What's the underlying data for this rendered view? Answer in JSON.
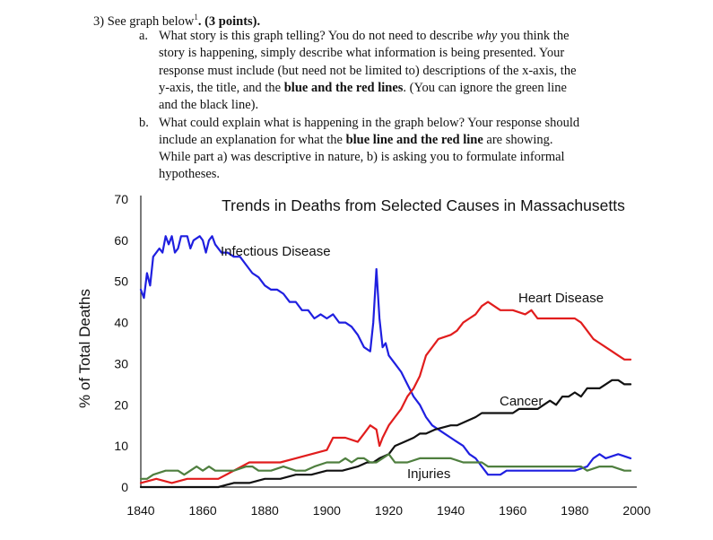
{
  "question": {
    "heading": "3)  See graph below",
    "sup": "1",
    "points": ". (3 points).",
    "a_marker": "a.",
    "a_lines": [
      [
        "What story is this graph telling? You do not need to describe ",
        "why",
        " you think the"
      ],
      [
        "story is happening, simply describe what information is being presented. Your"
      ],
      [
        "response must include (but need not be limited to) descriptions of the x-axis, the"
      ],
      [
        "y-axis, the title, and the ",
        "blue and the red lines",
        ". (You can ignore the green line"
      ],
      [
        "and the black line)."
      ]
    ],
    "a_l1_pre": "What story is this graph telling? You do not need to describe ",
    "a_l1_em": "why",
    "a_l1_post": " you think the",
    "a_l2": "story is happening, simply describe what information is being presented. Your",
    "a_l3": "response must include (but need not be limited to) descriptions of the x-axis, the",
    "a_l4_pre": "y-axis, the title, and the ",
    "a_l4_bold": "blue and the red lines",
    "a_l4_post": ". (You can ignore the green line",
    "a_l5": "and the black line).",
    "b_marker": "b.",
    "b_l1": "What could explain what is happening in the graph below? Your response should",
    "b_l2_pre": "include an explanation for what the ",
    "b_l2_bold": "blue line and the red line",
    "b_l2_post": " are showing.",
    "b_l3": "While part a) was descriptive in nature, b) is asking you to formulate informal",
    "b_l4": "hypotheses."
  },
  "chart_data": {
    "type": "line",
    "title": "Trends in Deaths from Selected Causes in Massachusetts",
    "ylabel": "% of Total Deaths",
    "xlabel": "",
    "xlim": [
      1840,
      2000
    ],
    "ylim": [
      0,
      70
    ],
    "x_ticks": [
      "1840",
      "1860",
      "1880",
      "1900",
      "1920",
      "1940",
      "1960",
      "1980",
      "2000"
    ],
    "y_ticks": [
      "0",
      "10",
      "20",
      "30",
      "40",
      "50",
      "60",
      "70"
    ],
    "grid": false,
    "series": [
      {
        "name": "Infectious Disease",
        "color": "#1f1fe0",
        "points": [
          [
            1840,
            48
          ],
          [
            1841,
            46
          ],
          [
            1842,
            52
          ],
          [
            1843,
            49
          ],
          [
            1844,
            56
          ],
          [
            1846,
            58
          ],
          [
            1847,
            57
          ],
          [
            1848,
            61
          ],
          [
            1849,
            59
          ],
          [
            1850,
            61
          ],
          [
            1851,
            57
          ],
          [
            1852,
            58
          ],
          [
            1853,
            61
          ],
          [
            1855,
            61
          ],
          [
            1856,
            58
          ],
          [
            1857,
            60
          ],
          [
            1859,
            61
          ],
          [
            1860,
            60
          ],
          [
            1861,
            57
          ],
          [
            1862,
            60
          ],
          [
            1863,
            61
          ],
          [
            1864,
            59
          ],
          [
            1866,
            57
          ],
          [
            1868,
            57
          ],
          [
            1870,
            56
          ],
          [
            1872,
            56
          ],
          [
            1874,
            54
          ],
          [
            1876,
            52
          ],
          [
            1878,
            51
          ],
          [
            1880,
            49
          ],
          [
            1882,
            48
          ],
          [
            1884,
            48
          ],
          [
            1886,
            47
          ],
          [
            1888,
            45
          ],
          [
            1890,
            45
          ],
          [
            1892,
            43
          ],
          [
            1894,
            43
          ],
          [
            1896,
            41
          ],
          [
            1898,
            42
          ],
          [
            1900,
            41
          ],
          [
            1902,
            42
          ],
          [
            1904,
            40
          ],
          [
            1906,
            40
          ],
          [
            1908,
            39
          ],
          [
            1910,
            37
          ],
          [
            1912,
            34
          ],
          [
            1914,
            33
          ],
          [
            1915,
            40
          ],
          [
            1916,
            53
          ],
          [
            1917,
            41
          ],
          [
            1918,
            34
          ],
          [
            1919,
            35
          ],
          [
            1920,
            32
          ],
          [
            1922,
            30
          ],
          [
            1924,
            28
          ],
          [
            1926,
            25
          ],
          [
            1928,
            22
          ],
          [
            1930,
            20
          ],
          [
            1932,
            17
          ],
          [
            1934,
            15
          ],
          [
            1936,
            14
          ],
          [
            1938,
            13
          ],
          [
            1940,
            12
          ],
          [
            1942,
            11
          ],
          [
            1944,
            10
          ],
          [
            1946,
            8
          ],
          [
            1948,
            7
          ],
          [
            1950,
            5
          ],
          [
            1952,
            3
          ],
          [
            1954,
            3
          ],
          [
            1956,
            3
          ],
          [
            1958,
            4
          ],
          [
            1960,
            4
          ],
          [
            1964,
            4
          ],
          [
            1968,
            4
          ],
          [
            1972,
            4
          ],
          [
            1976,
            4
          ],
          [
            1980,
            4
          ],
          [
            1984,
            5
          ],
          [
            1986,
            7
          ],
          [
            1988,
            8
          ],
          [
            1990,
            7
          ],
          [
            1994,
            8
          ],
          [
            1998,
            7
          ]
        ]
      },
      {
        "name": "Heart Disease",
        "color": "#e11d1d",
        "points": [
          [
            1840,
            1
          ],
          [
            1845,
            2
          ],
          [
            1850,
            1
          ],
          [
            1855,
            2
          ],
          [
            1860,
            2
          ],
          [
            1865,
            2
          ],
          [
            1870,
            4
          ],
          [
            1875,
            6
          ],
          [
            1880,
            6
          ],
          [
            1885,
            6
          ],
          [
            1890,
            7
          ],
          [
            1895,
            8
          ],
          [
            1900,
            9
          ],
          [
            1902,
            12
          ],
          [
            1906,
            12
          ],
          [
            1910,
            11
          ],
          [
            1912,
            13
          ],
          [
            1914,
            15
          ],
          [
            1916,
            14
          ],
          [
            1917,
            10
          ],
          [
            1918,
            12
          ],
          [
            1920,
            15
          ],
          [
            1922,
            17
          ],
          [
            1924,
            19
          ],
          [
            1926,
            22
          ],
          [
            1928,
            24
          ],
          [
            1930,
            27
          ],
          [
            1932,
            32
          ],
          [
            1934,
            34
          ],
          [
            1936,
            36
          ],
          [
            1940,
            37
          ],
          [
            1942,
            38
          ],
          [
            1944,
            40
          ],
          [
            1946,
            41
          ],
          [
            1948,
            42
          ],
          [
            1950,
            44
          ],
          [
            1952,
            45
          ],
          [
            1954,
            44
          ],
          [
            1956,
            43
          ],
          [
            1960,
            43
          ],
          [
            1964,
            42
          ],
          [
            1966,
            43
          ],
          [
            1968,
            41
          ],
          [
            1972,
            41
          ],
          [
            1976,
            41
          ],
          [
            1980,
            41
          ],
          [
            1982,
            40
          ],
          [
            1984,
            38
          ],
          [
            1986,
            36
          ],
          [
            1988,
            35
          ],
          [
            1990,
            34
          ],
          [
            1992,
            33
          ],
          [
            1994,
            32
          ],
          [
            1996,
            31
          ],
          [
            1998,
            31
          ]
        ]
      },
      {
        "name": "Cancer",
        "color": "#111111",
        "points": [
          [
            1840,
            0
          ],
          [
            1845,
            0
          ],
          [
            1850,
            0
          ],
          [
            1855,
            0
          ],
          [
            1860,
            0
          ],
          [
            1865,
            0
          ],
          [
            1870,
            1
          ],
          [
            1875,
            1
          ],
          [
            1880,
            2
          ],
          [
            1885,
            2
          ],
          [
            1890,
            3
          ],
          [
            1895,
            3
          ],
          [
            1900,
            4
          ],
          [
            1905,
            4
          ],
          [
            1910,
            5
          ],
          [
            1913,
            6
          ],
          [
            1915,
            6
          ],
          [
            1917,
            7
          ],
          [
            1920,
            8
          ],
          [
            1922,
            10
          ],
          [
            1925,
            11
          ],
          [
            1928,
            12
          ],
          [
            1930,
            13
          ],
          [
            1932,
            13
          ],
          [
            1935,
            14
          ],
          [
            1940,
            15
          ],
          [
            1942,
            15
          ],
          [
            1945,
            16
          ],
          [
            1948,
            17
          ],
          [
            1950,
            18
          ],
          [
            1955,
            18
          ],
          [
            1958,
            18
          ],
          [
            1960,
            18
          ],
          [
            1962,
            19
          ],
          [
            1965,
            19
          ],
          [
            1968,
            19
          ],
          [
            1970,
            20
          ],
          [
            1972,
            21
          ],
          [
            1974,
            20
          ],
          [
            1976,
            22
          ],
          [
            1978,
            22
          ],
          [
            1980,
            23
          ],
          [
            1982,
            22
          ],
          [
            1984,
            24
          ],
          [
            1986,
            24
          ],
          [
            1988,
            24
          ],
          [
            1990,
            25
          ],
          [
            1992,
            26
          ],
          [
            1994,
            26
          ],
          [
            1996,
            25
          ],
          [
            1998,
            25
          ]
        ]
      },
      {
        "name": "Injuries",
        "color": "#4f7f3f",
        "points": [
          [
            1840,
            2
          ],
          [
            1842,
            2
          ],
          [
            1844,
            3
          ],
          [
            1848,
            4
          ],
          [
            1852,
            4
          ],
          [
            1854,
            3
          ],
          [
            1858,
            5
          ],
          [
            1860,
            4
          ],
          [
            1862,
            5
          ],
          [
            1864,
            4
          ],
          [
            1868,
            4
          ],
          [
            1870,
            4
          ],
          [
            1874,
            5
          ],
          [
            1876,
            5
          ],
          [
            1878,
            4
          ],
          [
            1882,
            4
          ],
          [
            1886,
            5
          ],
          [
            1890,
            4
          ],
          [
            1893,
            4
          ],
          [
            1896,
            5
          ],
          [
            1900,
            6
          ],
          [
            1904,
            6
          ],
          [
            1906,
            7
          ],
          [
            1908,
            6
          ],
          [
            1910,
            7
          ],
          [
            1912,
            7
          ],
          [
            1914,
            6
          ],
          [
            1916,
            6
          ],
          [
            1918,
            7
          ],
          [
            1920,
            8
          ],
          [
            1922,
            6
          ],
          [
            1926,
            6
          ],
          [
            1930,
            7
          ],
          [
            1936,
            7
          ],
          [
            1940,
            7
          ],
          [
            1944,
            6
          ],
          [
            1948,
            6
          ],
          [
            1950,
            6
          ],
          [
            1952,
            5
          ],
          [
            1956,
            5
          ],
          [
            1960,
            5
          ],
          [
            1964,
            5
          ],
          [
            1968,
            5
          ],
          [
            1970,
            5
          ],
          [
            1974,
            5
          ],
          [
            1978,
            5
          ],
          [
            1980,
            5
          ],
          [
            1982,
            5
          ],
          [
            1984,
            4
          ],
          [
            1988,
            5
          ],
          [
            1992,
            5
          ],
          [
            1996,
            4
          ],
          [
            1998,
            4
          ]
        ]
      }
    ],
    "labels": [
      {
        "series": "Infectious Disease",
        "text": "Infectious Disease"
      },
      {
        "series": "Heart Disease",
        "text": "Heart Disease"
      },
      {
        "series": "Cancer",
        "text": "Cancer"
      },
      {
        "series": "Injuries",
        "text": "Injuries"
      }
    ]
  }
}
